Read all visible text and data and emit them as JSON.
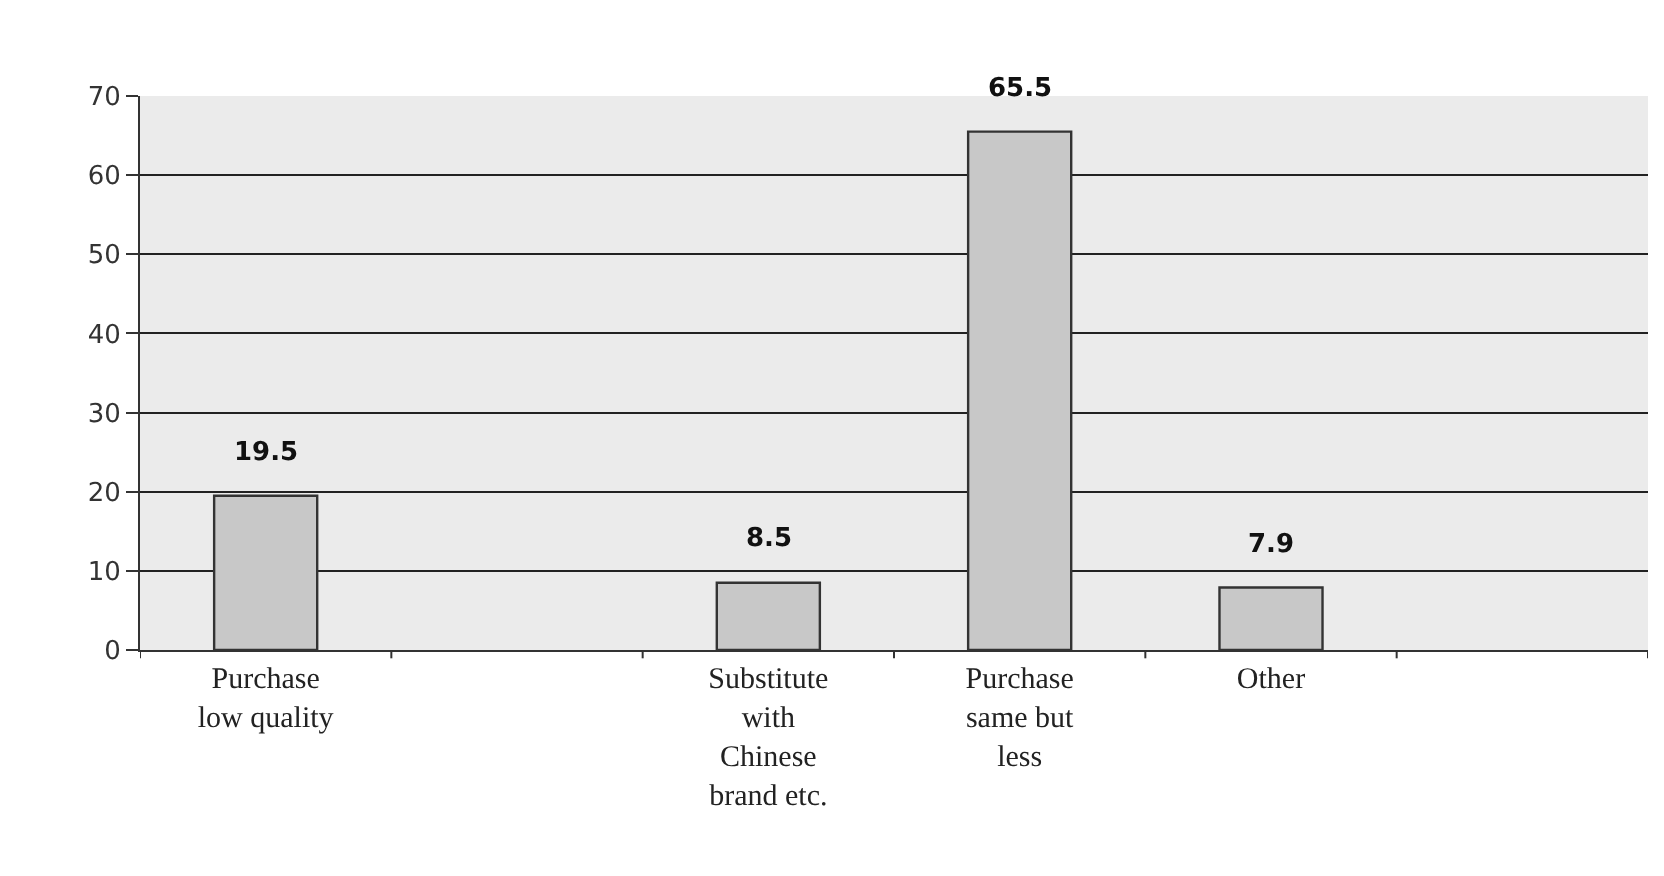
{
  "chart_data": {
    "type": "bar",
    "categories": [
      "Purchase low quality",
      null,
      "Substitute with Chinese brand etc.",
      "Purchase same but less",
      "Other",
      null
    ],
    "values": [
      19.5,
      null,
      8.5,
      65.5,
      7.9,
      null
    ],
    "color": "#c8c8c8",
    "ylim": [
      0,
      70
    ],
    "yticks": [
      0,
      10,
      20,
      30,
      40,
      50,
      60,
      70
    ],
    "grid": "y",
    "data_labels": true
  }
}
